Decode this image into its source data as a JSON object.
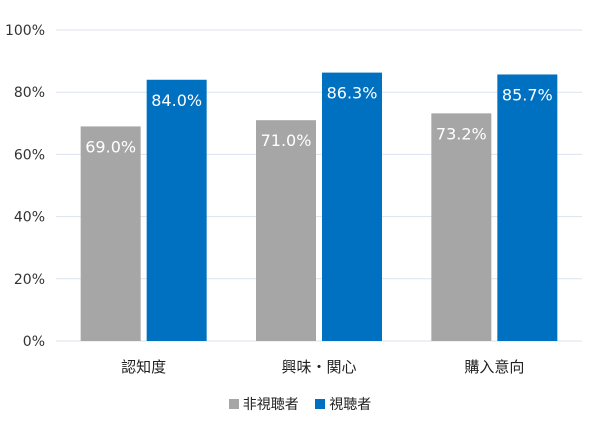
{
  "chart_data": {
    "type": "bar",
    "categories": [
      "認知度",
      "興味・関心",
      "購入意向"
    ],
    "series": [
      {
        "name": "非視聴者",
        "values": [
          69.0,
          71.0,
          73.2
        ],
        "labels": [
          "69.0%",
          "71.0%",
          "73.2%"
        ],
        "color": "#a6a6a6"
      },
      {
        "name": "視聴者",
        "values": [
          84.0,
          86.3,
          85.7
        ],
        "labels": [
          "84.0%",
          "86.3%",
          "85.7%"
        ],
        "color": "#0070c0"
      }
    ],
    "ylim": [
      0,
      100
    ],
    "yticks": [
      "0%",
      "20%",
      "40%",
      "60%",
      "80%",
      "100%"
    ],
    "ytick_values": [
      0,
      20,
      40,
      60,
      80,
      100
    ],
    "grid": true,
    "legend_position": "bottom",
    "data_label_color": "#ffffff",
    "grid_color": "#dbe3ee"
  }
}
